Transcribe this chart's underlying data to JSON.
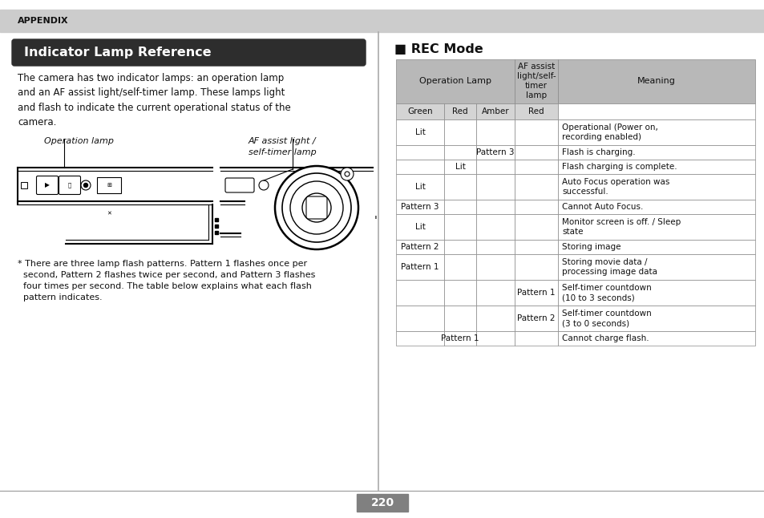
{
  "page_bg": "#ffffff",
  "header_bg": "#cccccc",
  "header_text": "APPENDIX",
  "title_bg": "#2d2d2d",
  "title_text": "Indicator Lamp Reference",
  "title_color": "#ffffff",
  "body_text": "The camera has two indicator lamps: an operation lamp\nand an AF assist light/self-timer lamp. These lamps light\nand flash to indicate the current operational status of the\ncamera.",
  "footnote_text": "* There are three lamp flash patterns. Pattern 1 flashes once per\n  second, Pattern 2 flashes twice per second, and Pattern 3 flashes\n  four times per second. The table below explains what each flash\n  pattern indicates.",
  "rec_mode_title": "■ REC Mode",
  "table_header_bg": "#b8b8b8",
  "table_subheader_bg": "#d4d4d4",
  "table_row_bg": "#ffffff",
  "table_border": "#888888",
  "rows": [
    [
      "Lit",
      "",
      "",
      "",
      "Operational (Power on,\nrecording enabled)"
    ],
    [
      "",
      "",
      "Pattern 3",
      "",
      "Flash is charging."
    ],
    [
      "",
      "Lit",
      "",
      "",
      "Flash charging is complete."
    ],
    [
      "Lit",
      "",
      "",
      "",
      "Auto Focus operation was\nsuccessful."
    ],
    [
      "Pattern 3",
      "",
      "",
      "",
      "Cannot Auto Focus."
    ],
    [
      "Lit",
      "",
      "",
      "",
      "Monitor screen is off. / Sleep\nstate"
    ],
    [
      "Pattern 2",
      "",
      "",
      "",
      "Storing image"
    ],
    [
      "Pattern 1",
      "",
      "",
      "",
      "Storing movie data /\nprocessing image data"
    ],
    [
      "",
      "",
      "",
      "Pattern 1",
      "Self-timer countdown\n(10 to 3 seconds)"
    ],
    [
      "",
      "",
      "",
      "Pattern 2",
      "Self-timer countdown\n(3 to 0 seconds)"
    ],
    [
      "",
      "Pattern 1",
      "",
      "",
      "Cannot charge flash."
    ]
  ],
  "page_number": "220",
  "page_number_bg": "#808080"
}
